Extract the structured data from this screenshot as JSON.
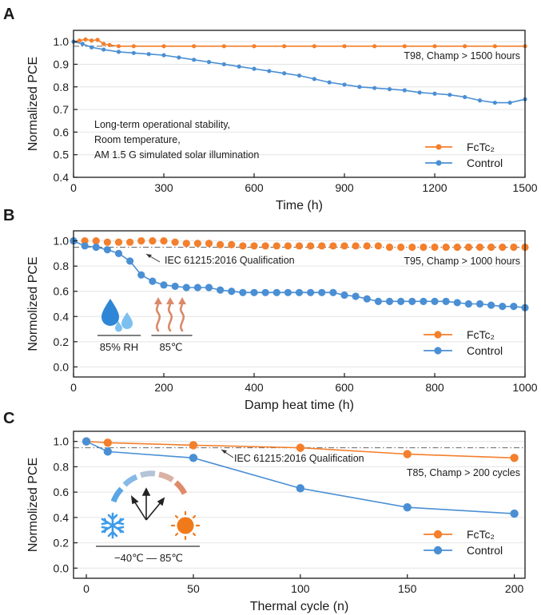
{
  "colors": {
    "fctc2": "#f47f2c",
    "control": "#4a8fd4",
    "ref_line": "#555555",
    "grid": "#e4e4e4",
    "water": "#2f86d6",
    "heat": "#d98a6a",
    "snow": "#3d9be9",
    "sun": "#f07a1a"
  },
  "chart_data": [
    {
      "id": "A",
      "type": "line",
      "title": "",
      "panel_label": "A",
      "xlabel": "Time (h)",
      "ylabel": "Normalized PCE",
      "xlim": [
        0,
        1500
      ],
      "ylim": [
        0.4,
        1.05
      ],
      "xticks": [
        0,
        300,
        600,
        900,
        1200,
        1500
      ],
      "yticks": [
        0.4,
        0.5,
        0.6,
        0.7,
        0.8,
        0.9,
        1.0
      ],
      "ytick_labels": [
        "0.4",
        "0.5",
        "0.6",
        "0.7",
        "0.8",
        "0.9",
        "1.0"
      ],
      "grid": true,
      "reference_lines": [
        0.98
      ],
      "annotations": [
        "T98, Champ > 1500 hours"
      ],
      "notes": [
        "Long-term operational stability,",
        "Room temperature,",
        "AM 1.5 G simulated solar illumination"
      ],
      "legend": {
        "position": "bottom-right",
        "entries": [
          "FcTc₂",
          "Control"
        ]
      },
      "series": [
        {
          "name": "FcTc₂",
          "color": "fctc2",
          "marker_radius": 2.6,
          "line": true,
          "x": [
            0,
            20,
            40,
            60,
            80,
            100,
            120,
            150,
            200,
            300,
            400,
            500,
            600,
            700,
            800,
            900,
            1000,
            1100,
            1200,
            1300,
            1400,
            1500
          ],
          "y": [
            1.0,
            1.005,
            1.01,
            1.005,
            1.008,
            0.99,
            0.985,
            0.98,
            0.98,
            0.98,
            0.98,
            0.98,
            0.98,
            0.98,
            0.98,
            0.98,
            0.98,
            0.98,
            0.98,
            0.98,
            0.98,
            0.98
          ]
        },
        {
          "name": "Control",
          "color": "control",
          "marker_radius": 2.6,
          "line": true,
          "x": [
            0,
            30,
            60,
            100,
            150,
            200,
            250,
            300,
            350,
            400,
            450,
            500,
            550,
            600,
            650,
            700,
            750,
            800,
            850,
            900,
            950,
            1000,
            1050,
            1100,
            1150,
            1200,
            1250,
            1300,
            1350,
            1400,
            1450,
            1500
          ],
          "y": [
            1.0,
            0.99,
            0.975,
            0.965,
            0.955,
            0.95,
            0.945,
            0.94,
            0.93,
            0.92,
            0.91,
            0.9,
            0.89,
            0.88,
            0.87,
            0.86,
            0.85,
            0.835,
            0.82,
            0.81,
            0.8,
            0.795,
            0.79,
            0.785,
            0.775,
            0.77,
            0.765,
            0.755,
            0.74,
            0.73,
            0.73,
            0.745
          ]
        }
      ]
    },
    {
      "id": "B",
      "type": "line",
      "title": "",
      "panel_label": "B",
      "xlabel": "Damp heat time (h)",
      "ylabel": "Normolized PCE",
      "xlim": [
        0,
        1000
      ],
      "ylim": [
        -0.08,
        1.08
      ],
      "xticks": [
        0,
        200,
        400,
        600,
        800,
        1000
      ],
      "yticks": [
        0.0,
        0.2,
        0.4,
        0.6,
        0.8,
        1.0
      ],
      "ytick_labels": [
        "0.0",
        "0.2",
        "0.4",
        "0.6",
        "0.8",
        "1.0"
      ],
      "grid": true,
      "reference_lines": [
        0.95
      ],
      "annotations": [
        "IEC 61215:2016 Qualification",
        "T95, Champ > 1000 hours"
      ],
      "icon_labels": [
        "85% RH",
        "85℃"
      ],
      "legend": {
        "position": "bottom-right",
        "entries": [
          "FcTc₂",
          "Control"
        ]
      },
      "series": [
        {
          "name": "FcTc₂",
          "color": "fctc2",
          "marker_radius": 4.6,
          "line": false,
          "x": [
            0,
            25,
            50,
            75,
            100,
            125,
            150,
            175,
            200,
            225,
            250,
            275,
            300,
            325,
            350,
            375,
            400,
            425,
            450,
            475,
            500,
            525,
            550,
            575,
            600,
            625,
            650,
            675,
            700,
            725,
            750,
            775,
            800,
            825,
            850,
            875,
            900,
            925,
            950,
            975,
            1000
          ],
          "y": [
            1.0,
            1.0,
            1.0,
            0.99,
            0.99,
            0.99,
            1.0,
            1.0,
            1.0,
            0.99,
            0.98,
            0.98,
            0.98,
            0.97,
            0.97,
            0.96,
            0.96,
            0.96,
            0.96,
            0.96,
            0.96,
            0.96,
            0.96,
            0.96,
            0.96,
            0.96,
            0.96,
            0.96,
            0.95,
            0.95,
            0.95,
            0.95,
            0.95,
            0.95,
            0.95,
            0.95,
            0.95,
            0.95,
            0.95,
            0.95,
            0.95
          ]
        },
        {
          "name": "Control",
          "color": "control",
          "marker_radius": 4.6,
          "line": true,
          "x": [
            0,
            25,
            50,
            75,
            100,
            125,
            150,
            175,
            200,
            225,
            250,
            275,
            300,
            325,
            350,
            375,
            400,
            425,
            450,
            475,
            500,
            525,
            550,
            575,
            600,
            625,
            650,
            675,
            700,
            725,
            750,
            775,
            800,
            825,
            850,
            875,
            900,
            925,
            950,
            975,
            1000
          ],
          "y": [
            1.0,
            0.96,
            0.95,
            0.93,
            0.9,
            0.84,
            0.73,
            0.68,
            0.65,
            0.64,
            0.63,
            0.63,
            0.63,
            0.61,
            0.6,
            0.59,
            0.59,
            0.59,
            0.59,
            0.59,
            0.59,
            0.59,
            0.59,
            0.59,
            0.57,
            0.56,
            0.54,
            0.52,
            0.52,
            0.52,
            0.52,
            0.52,
            0.52,
            0.52,
            0.51,
            0.5,
            0.5,
            0.49,
            0.48,
            0.48,
            0.47
          ]
        }
      ]
    },
    {
      "id": "C",
      "type": "line",
      "title": "",
      "panel_label": "C",
      "xlabel": "Thermal cycle (n)",
      "ylabel": "Normolized PCE",
      "xlim": [
        -6,
        205
      ],
      "ylim": [
        -0.08,
        1.08
      ],
      "xticks": [
        0,
        50,
        100,
        150,
        200
      ],
      "yticks": [
        0.0,
        0.2,
        0.4,
        0.6,
        0.8,
        1.0
      ],
      "ytick_labels": [
        "0.0",
        "0.2",
        "0.4",
        "0.6",
        "0.8",
        "1.0"
      ],
      "grid": true,
      "reference_lines": [
        0.95
      ],
      "annotations": [
        "IEC 61215:2016 Qualification",
        "T85, Champ > 200 cycles"
      ],
      "icon_labels": [
        "−40℃ — 85℃"
      ],
      "legend": {
        "position": "bottom-right",
        "entries": [
          "FcTc₂",
          "Control"
        ]
      },
      "series": [
        {
          "name": "FcTc₂",
          "color": "fctc2",
          "marker_radius": 5.2,
          "line": true,
          "x": [
            0,
            10,
            50,
            100,
            150,
            200
          ],
          "y": [
            1.0,
            0.99,
            0.97,
            0.95,
            0.9,
            0.87
          ]
        },
        {
          "name": "Control",
          "color": "control",
          "marker_radius": 5.2,
          "line": true,
          "x": [
            0,
            10,
            50,
            100,
            150,
            200
          ],
          "y": [
            1.0,
            0.92,
            0.87,
            0.63,
            0.48,
            0.43
          ]
        }
      ]
    }
  ]
}
